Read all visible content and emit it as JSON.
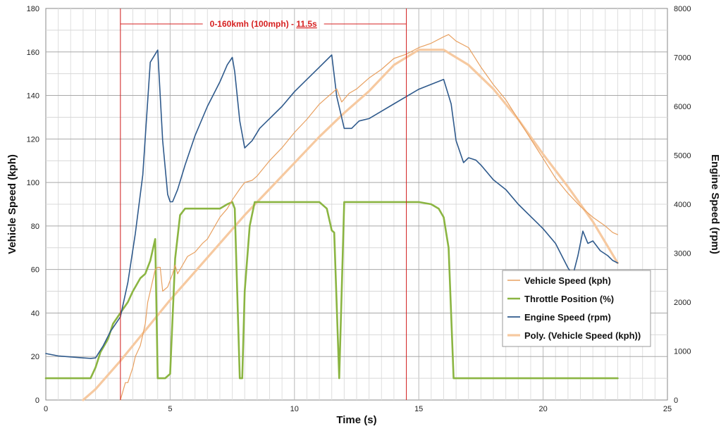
{
  "chart_data": {
    "type": "line",
    "xlabel": "Time (s)",
    "ylabel": "Vehicle Speed (kph)",
    "y2label": "Engine Speed (rpm)",
    "xlim": [
      0,
      25
    ],
    "ylim": [
      0,
      180
    ],
    "y2lim": [
      0,
      8000
    ],
    "x_ticks": [
      0,
      5,
      10,
      15,
      20,
      25
    ],
    "y_ticks": [
      0,
      20,
      40,
      60,
      80,
      100,
      120,
      140,
      160,
      180
    ],
    "y2_ticks": [
      0,
      1000,
      2000,
      3000,
      4000,
      5000,
      6000,
      7000,
      8000
    ],
    "grid": true,
    "legend_position": "bottom-right",
    "annotation": {
      "text_prefix": "0-160kmh (100mph) - ",
      "text_value": "11.5s",
      "x_start": 3.0,
      "x_end": 14.5
    },
    "series": [
      {
        "name": "Vehicle Speed (kph)",
        "axis": "left",
        "color": "#e8a060",
        "x": [
          3.0,
          3.2,
          3.3,
          3.5,
          3.6,
          3.8,
          4.0,
          4.1,
          4.2,
          4.3,
          4.4,
          4.5,
          4.6,
          4.7,
          4.8,
          4.9,
          5.0,
          5.1,
          5.2,
          5.3,
          5.5,
          5.7,
          6.0,
          6.3,
          6.5,
          6.8,
          7.0,
          7.3,
          7.5,
          7.8,
          8.0,
          8.3,
          8.5,
          9.0,
          9.5,
          10.0,
          10.5,
          11.0,
          11.3,
          11.5,
          11.7,
          11.9,
          12.2,
          12.5,
          13.0,
          13.5,
          14.0,
          14.5,
          15.0,
          15.5,
          16.0,
          16.2,
          16.5,
          17.0,
          17.5,
          18.0,
          18.5,
          19.0,
          19.5,
          20.0,
          20.5,
          21.0,
          21.5,
          22.0,
          22.5,
          22.8,
          23.0
        ],
        "values": [
          0,
          8,
          8,
          15,
          20,
          25,
          35,
          45,
          50,
          55,
          60,
          61,
          61,
          50,
          51,
          52,
          55,
          58,
          62,
          58,
          62,
          66,
          68,
          72,
          74,
          80,
          84,
          88,
          92,
          97,
          100,
          101,
          103,
          110,
          116,
          123,
          129,
          136,
          139,
          141,
          143,
          137,
          141,
          143,
          148,
          152,
          157,
          159,
          162,
          164,
          167,
          168,
          165,
          162,
          153,
          145,
          138,
          129,
          120,
          111,
          102,
          95,
          89,
          84,
          80,
          77,
          76
        ]
      },
      {
        "name": "Throttle Position (%)",
        "axis": "left",
        "color": "#8bb542",
        "x": [
          0,
          1.8,
          2.0,
          2.2,
          2.5,
          2.7,
          3.0,
          3.3,
          3.5,
          3.8,
          4.0,
          4.2,
          4.4,
          4.5,
          4.6,
          4.8,
          5.0,
          5.2,
          5.4,
          5.6,
          6.0,
          7.0,
          7.3,
          7.5,
          7.6,
          7.8,
          7.9,
          8.0,
          8.2,
          8.4,
          8.6,
          11.0,
          11.3,
          11.5,
          11.6,
          11.8,
          12.0,
          12.2,
          12.5,
          14.0,
          15.0,
          15.5,
          15.8,
          16.0,
          16.2,
          16.4,
          23.0
        ],
        "values": [
          10,
          10,
          15,
          22,
          28,
          35,
          40,
          45,
          50,
          56,
          58,
          64,
          74,
          10,
          10,
          10,
          12,
          65,
          85,
          88,
          88,
          88,
          90,
          91,
          88,
          10,
          10,
          50,
          80,
          91,
          91,
          91,
          88,
          78,
          77,
          10,
          91,
          91,
          91,
          91,
          91,
          90,
          88,
          84,
          70,
          10,
          10
        ]
      },
      {
        "name": "Engine Speed (rpm)",
        "axis": "right",
        "color": "#2f5a8c",
        "x": [
          0,
          0.5,
          1.0,
          1.5,
          1.8,
          2.0,
          2.3,
          2.6,
          3.0,
          3.3,
          3.6,
          3.9,
          4.2,
          4.5,
          4.7,
          4.9,
          5.0,
          5.1,
          5.3,
          5.6,
          6.0,
          6.5,
          7.0,
          7.3,
          7.5,
          7.6,
          7.8,
          8.0,
          8.3,
          8.6,
          9.0,
          9.5,
          10.0,
          10.5,
          11.0,
          11.5,
          11.7,
          12.0,
          12.3,
          12.6,
          13.0,
          13.5,
          14.0,
          14.5,
          15.0,
          15.5,
          16.0,
          16.3,
          16.5,
          16.8,
          17.0,
          17.3,
          17.5,
          18.0,
          18.5,
          19.0,
          19.5,
          20.0,
          20.5,
          21.0,
          21.2,
          21.4,
          21.6,
          21.8,
          22.0,
          22.3,
          22.6,
          22.8,
          23.0
        ],
        "values": [
          950,
          900,
          880,
          860,
          850,
          860,
          1100,
          1400,
          1700,
          2400,
          3400,
          4600,
          6900,
          7150,
          5300,
          4200,
          4050,
          4050,
          4300,
          4800,
          5400,
          6000,
          6500,
          6850,
          7000,
          6700,
          5700,
          5150,
          5300,
          5550,
          5750,
          6000,
          6300,
          6550,
          6800,
          7050,
          6200,
          5550,
          5550,
          5700,
          5750,
          5900,
          6050,
          6200,
          6350,
          6450,
          6550,
          6050,
          5300,
          4850,
          4950,
          4900,
          4800,
          4500,
          4300,
          4000,
          3750,
          3500,
          3200,
          2700,
          2550,
          2950,
          3450,
          3200,
          3250,
          3050,
          2950,
          2850,
          2800
        ]
      },
      {
        "name": "Poly. (Vehicle Speed (kph))",
        "axis": "left",
        "color": "#f6c9a0",
        "x": [
          1.5,
          2.0,
          3.0,
          4.0,
          5.0,
          6.0,
          7.0,
          8.0,
          9.0,
          10.0,
          11.0,
          12.0,
          13.0,
          14.0,
          15.0,
          16.0,
          17.0,
          18.0,
          19.0,
          20.0,
          21.0,
          22.0,
          23.0
        ],
        "values": [
          0,
          5,
          18,
          32,
          46,
          59,
          72,
          85,
          97,
          109,
          121,
          132,
          142,
          154,
          161,
          161,
          154,
          143,
          129,
          113,
          98,
          82,
          63
        ]
      }
    ]
  }
}
